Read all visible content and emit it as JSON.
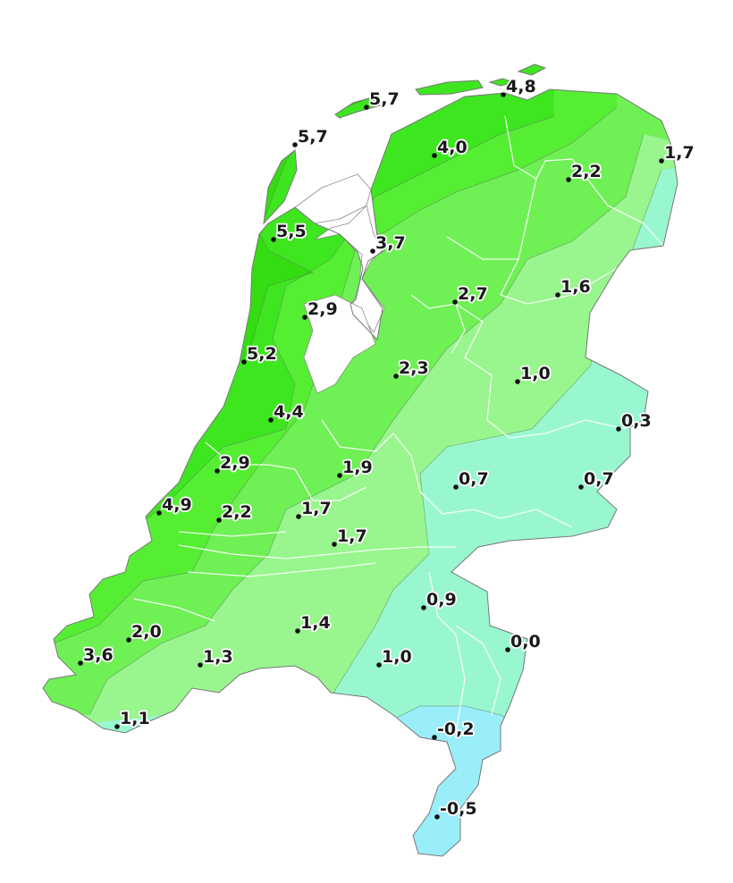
{
  "map": {
    "colors": {
      "band_above_5": "#33dd11",
      "band_4_5": "#3ee620",
      "band_3_4": "#55ee33",
      "band_2_3": "#6ff055",
      "band_1_2": "#99f58e",
      "band_0_1": "#99f7cf",
      "band_below_0": "#99eefa"
    },
    "stations": [
      {
        "id": "vlieland",
        "label": "5,7"
      },
      {
        "id": "terschelling",
        "label": "5,7"
      },
      {
        "id": "schiermonnikoog",
        "label": "4,8"
      },
      {
        "id": "leeuwarden",
        "label": "4,0"
      },
      {
        "id": "delfzijl",
        "label": "1,7"
      },
      {
        "id": "groningen",
        "label": "2,2"
      },
      {
        "id": "den-helder",
        "label": "5,5"
      },
      {
        "id": "stavoren",
        "label": "3,7"
      },
      {
        "id": "hoorn",
        "label": "2,9"
      },
      {
        "id": "emmeloord",
        "label": "2,7"
      },
      {
        "id": "hoogeveen",
        "label": "1,6"
      },
      {
        "id": "ijmuiden",
        "label": "5,2"
      },
      {
        "id": "lelystad",
        "label": "2,3"
      },
      {
        "id": "heino",
        "label": "1,0"
      },
      {
        "id": "twente",
        "label": "0,3"
      },
      {
        "id": "schiphol",
        "label": "4,4"
      },
      {
        "id": "leiden",
        "label": "2,9"
      },
      {
        "id": "de-bilt",
        "label": "1,9"
      },
      {
        "id": "deelen",
        "label": "0,7"
      },
      {
        "id": "hupsel",
        "label": "0,7"
      },
      {
        "id": "hoek-van-holland",
        "label": "4,9"
      },
      {
        "id": "rotterdam",
        "label": "2,2"
      },
      {
        "id": "cabauw",
        "label": "1,7"
      },
      {
        "id": "herwijnen",
        "label": "1,7"
      },
      {
        "id": "volkel",
        "label": "0,9"
      },
      {
        "id": "wilhelminadorp",
        "label": "2,0"
      },
      {
        "id": "gilze-rijen",
        "label": "1,4"
      },
      {
        "id": "vlissingen",
        "label": "3,6"
      },
      {
        "id": "woensdrecht",
        "label": "1,3"
      },
      {
        "id": "eindhoven",
        "label": "1,0"
      },
      {
        "id": "arcen",
        "label": "0,0"
      },
      {
        "id": "westdorpe",
        "label": "1,1"
      },
      {
        "id": "ell",
        "label": "-0,2"
      },
      {
        "id": "maastricht",
        "label": "-0,5"
      }
    ]
  }
}
